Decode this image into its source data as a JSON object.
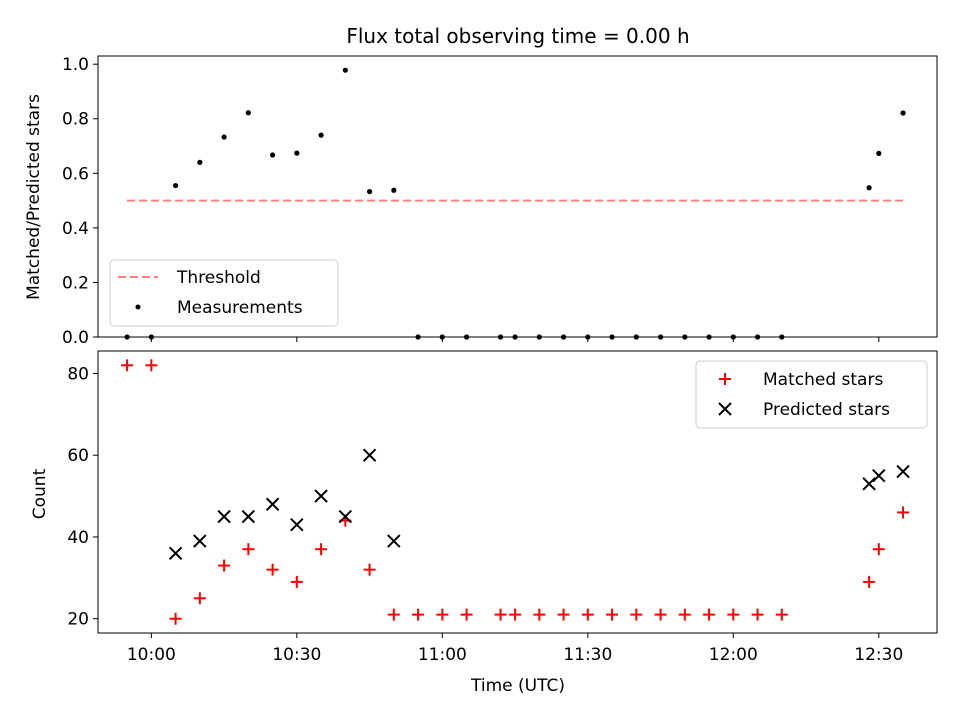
{
  "chart_data": [
    {
      "type": "scatter",
      "title": "Flux total observing time = 0.00 h",
      "xlabel": "",
      "ylabel": "Matched/Predicted stars",
      "xlim": [
        "09:49",
        "12:42"
      ],
      "ylim": [
        0,
        1.03
      ],
      "y_ticks": [
        0,
        0.2,
        0.4,
        0.6,
        0.8,
        1.0
      ],
      "y_tick_labels": [
        "0.0",
        "0.2",
        "0.4",
        "0.6",
        "0.8",
        "1.0"
      ],
      "grid": false,
      "legend_position": "bottom-left",
      "series": [
        {
          "name": "Threshold",
          "style": "dashed-line",
          "color": "#ff7f7f",
          "x": [
            "09:55",
            "12:35"
          ],
          "y": [
            0.5,
            0.5
          ]
        },
        {
          "name": "Measurements",
          "style": "dot",
          "color": "#000000",
          "x": [
            "09:55",
            "10:00",
            "10:05",
            "10:10",
            "10:15",
            "10:20",
            "10:25",
            "10:30",
            "10:35",
            "10:40",
            "10:45",
            "10:50",
            "10:55",
            "11:00",
            "11:05",
            "11:12",
            "11:15",
            "11:20",
            "11:25",
            "11:30",
            "11:35",
            "11:40",
            "11:45",
            "11:50",
            "11:55",
            "12:00",
            "12:05",
            "12:10",
            "12:28",
            "12:30",
            "12:35"
          ],
          "y": [
            0.0,
            0.0,
            0.555,
            0.64,
            0.733,
            0.822,
            0.667,
            0.674,
            0.74,
            0.978,
            0.533,
            0.538,
            0.0,
            0.0,
            0.0,
            0.0,
            0.0,
            0.0,
            0.0,
            0.0,
            0.0,
            0.0,
            0.0,
            0.0,
            0.0,
            0.0,
            0.0,
            0.0,
            0.547,
            0.673,
            0.821
          ]
        }
      ]
    },
    {
      "type": "scatter",
      "title": "",
      "xlabel": "Time (UTC)",
      "ylabel": "Count",
      "xlim": [
        "09:49",
        "12:42"
      ],
      "ylim": [
        16.5,
        85.5
      ],
      "x_ticks": [
        "10:00",
        "10:30",
        "11:00",
        "11:30",
        "12:00",
        "12:30"
      ],
      "y_ticks": [
        20,
        40,
        60,
        80
      ],
      "y_tick_labels": [
        "20",
        "40",
        "60",
        "80"
      ],
      "grid": false,
      "legend_position": "top-right",
      "series": [
        {
          "name": "Matched stars",
          "marker": "plus",
          "color": "#ff0000",
          "x": [
            "09:55",
            "10:00",
            "10:05",
            "10:10",
            "10:15",
            "10:20",
            "10:25",
            "10:30",
            "10:35",
            "10:40",
            "10:45",
            "10:50",
            "10:55",
            "11:00",
            "11:05",
            "11:12",
            "11:15",
            "11:20",
            "11:25",
            "11:30",
            "11:35",
            "11:40",
            "11:45",
            "11:50",
            "11:55",
            "12:00",
            "12:05",
            "12:10",
            "12:28",
            "12:30",
            "12:35"
          ],
          "y": [
            82,
            82,
            20,
            25,
            33,
            37,
            32,
            29,
            37,
            44,
            32,
            21,
            21,
            21,
            21,
            21,
            21,
            21,
            21,
            21,
            21,
            21,
            21,
            21,
            21,
            21,
            21,
            21,
            29,
            37,
            46
          ]
        },
        {
          "name": "Predicted stars",
          "marker": "x",
          "color": "#000000",
          "x": [
            "10:05",
            "10:10",
            "10:15",
            "10:20",
            "10:25",
            "10:30",
            "10:35",
            "10:40",
            "10:45",
            "10:50",
            "12:28",
            "12:30",
            "12:35"
          ],
          "y": [
            36,
            39,
            45,
            45,
            48,
            43,
            50,
            45,
            60,
            39,
            53,
            55,
            56
          ]
        }
      ]
    }
  ]
}
